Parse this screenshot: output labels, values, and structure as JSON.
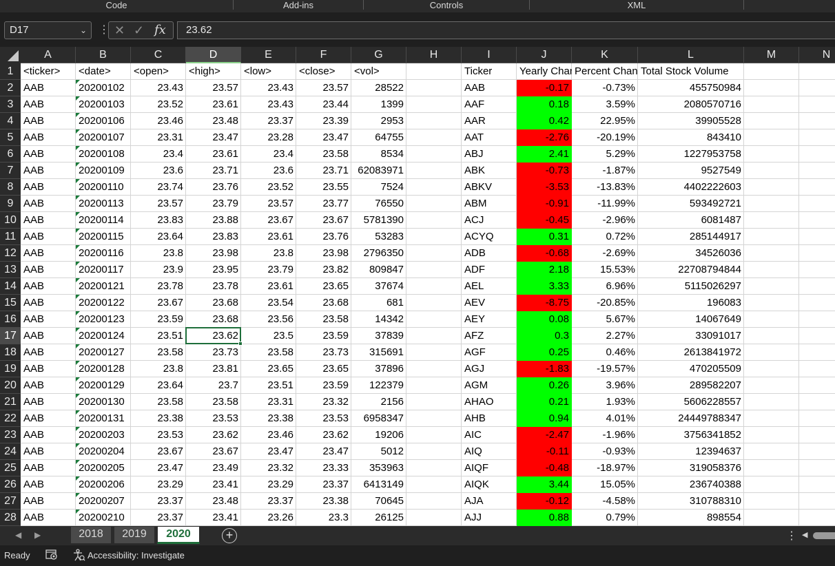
{
  "ribbon": {
    "groups": [
      "Code",
      "Add-ins",
      "Controls",
      "XML"
    ]
  },
  "formula_bar": {
    "name_box": "D17",
    "value": "23.62",
    "fx_label": "fx"
  },
  "columns": [
    "A",
    "B",
    "C",
    "D",
    "E",
    "F",
    "G",
    "H",
    "I",
    "J",
    "K",
    "L",
    "M",
    "N"
  ],
  "selected_column": "D",
  "selected_row": 17,
  "rows": [
    1,
    2,
    3,
    4,
    5,
    6,
    7,
    8,
    9,
    10,
    11,
    12,
    13,
    14,
    15,
    16,
    17,
    18,
    19,
    20,
    21,
    22,
    23,
    24,
    25,
    26,
    27,
    28
  ],
  "headers": {
    "ticker": "<ticker>",
    "date": "<date>",
    "open": "<open>",
    "high": "<high>",
    "low": "<low>",
    "close": "<close>",
    "vol": "<vol>",
    "summary_ticker": "Ticker",
    "yearly_change": "Yearly Change",
    "percent_change": "Percent Change",
    "total_volume": "Total Stock Volume"
  },
  "stock_rows": [
    [
      "AAB",
      "20200102",
      "23.43",
      "23.57",
      "23.43",
      "23.57",
      "28522"
    ],
    [
      "AAB",
      "20200103",
      "23.52",
      "23.61",
      "23.43",
      "23.44",
      "1399"
    ],
    [
      "AAB",
      "20200106",
      "23.46",
      "23.48",
      "23.37",
      "23.39",
      "2953"
    ],
    [
      "AAB",
      "20200107",
      "23.31",
      "23.47",
      "23.28",
      "23.47",
      "64755"
    ],
    [
      "AAB",
      "20200108",
      "23.4",
      "23.61",
      "23.4",
      "23.58",
      "8534"
    ],
    [
      "AAB",
      "20200109",
      "23.6",
      "23.71",
      "23.6",
      "23.71",
      "62083971"
    ],
    [
      "AAB",
      "20200110",
      "23.74",
      "23.76",
      "23.52",
      "23.55",
      "7524"
    ],
    [
      "AAB",
      "20200113",
      "23.57",
      "23.79",
      "23.57",
      "23.77",
      "76550"
    ],
    [
      "AAB",
      "20200114",
      "23.83",
      "23.88",
      "23.67",
      "23.67",
      "5781390"
    ],
    [
      "AAB",
      "20200115",
      "23.64",
      "23.83",
      "23.61",
      "23.76",
      "53283"
    ],
    [
      "AAB",
      "20200116",
      "23.8",
      "23.98",
      "23.8",
      "23.98",
      "2796350"
    ],
    [
      "AAB",
      "20200117",
      "23.9",
      "23.95",
      "23.79",
      "23.82",
      "809847"
    ],
    [
      "AAB",
      "20200121",
      "23.78",
      "23.78",
      "23.61",
      "23.65",
      "37674"
    ],
    [
      "AAB",
      "20200122",
      "23.67",
      "23.68",
      "23.54",
      "23.68",
      "681"
    ],
    [
      "AAB",
      "20200123",
      "23.59",
      "23.68",
      "23.56",
      "23.58",
      "14342"
    ],
    [
      "AAB",
      "20200124",
      "23.51",
      "23.62",
      "23.5",
      "23.59",
      "37839"
    ],
    [
      "AAB",
      "20200127",
      "23.58",
      "23.73",
      "23.58",
      "23.73",
      "315691"
    ],
    [
      "AAB",
      "20200128",
      "23.8",
      "23.81",
      "23.65",
      "23.65",
      "37896"
    ],
    [
      "AAB",
      "20200129",
      "23.64",
      "23.7",
      "23.51",
      "23.59",
      "122379"
    ],
    [
      "AAB",
      "20200130",
      "23.58",
      "23.58",
      "23.31",
      "23.32",
      "2156"
    ],
    [
      "AAB",
      "20200131",
      "23.38",
      "23.53",
      "23.38",
      "23.53",
      "6958347"
    ],
    [
      "AAB",
      "20200203",
      "23.53",
      "23.62",
      "23.46",
      "23.62",
      "19206"
    ],
    [
      "AAB",
      "20200204",
      "23.67",
      "23.67",
      "23.47",
      "23.47",
      "5012"
    ],
    [
      "AAB",
      "20200205",
      "23.47",
      "23.49",
      "23.32",
      "23.33",
      "353963"
    ],
    [
      "AAB",
      "20200206",
      "23.29",
      "23.41",
      "23.29",
      "23.37",
      "6413149"
    ],
    [
      "AAB",
      "20200207",
      "23.37",
      "23.48",
      "23.37",
      "23.38",
      "70645"
    ],
    [
      "AAB",
      "20200210",
      "23.37",
      "23.41",
      "23.26",
      "23.3",
      "26125"
    ]
  ],
  "summary_rows": [
    [
      "AAB",
      "-0.17",
      "-0.73%",
      "455750984"
    ],
    [
      "AAF",
      "0.18",
      "3.59%",
      "2080570716"
    ],
    [
      "AAR",
      "0.42",
      "22.95%",
      "39905528"
    ],
    [
      "AAT",
      "-2.76",
      "-20.19%",
      "843410"
    ],
    [
      "ABJ",
      "2.41",
      "5.29%",
      "1227953758"
    ],
    [
      "ABK",
      "-0.73",
      "-1.87%",
      "9527549"
    ],
    [
      "ABKV",
      "-3.53",
      "-13.83%",
      "4402222603"
    ],
    [
      "ABM",
      "-0.91",
      "-11.99%",
      "593492721"
    ],
    [
      "ACJ",
      "-0.45",
      "-2.96%",
      "6081487"
    ],
    [
      "ACYQ",
      "0.31",
      "0.72%",
      "285144917"
    ],
    [
      "ADB",
      "-0.68",
      "-2.69%",
      "34526036"
    ],
    [
      "ADF",
      "2.18",
      "15.53%",
      "22708794844"
    ],
    [
      "AEL",
      "3.33",
      "6.96%",
      "5115026297"
    ],
    [
      "AEV",
      "-8.75",
      "-20.85%",
      "196083"
    ],
    [
      "AEY",
      "0.08",
      "5.67%",
      "14067649"
    ],
    [
      "AFZ",
      "0.3",
      "2.27%",
      "33091017"
    ],
    [
      "AGF",
      "0.25",
      "0.46%",
      "2613841972"
    ],
    [
      "AGJ",
      "-1.83",
      "-19.57%",
      "470205509"
    ],
    [
      "AGM",
      "0.26",
      "3.96%",
      "289582207"
    ],
    [
      "AHAO",
      "0.21",
      "1.93%",
      "5606228557"
    ],
    [
      "AHB",
      "0.94",
      "4.01%",
      "24449788347"
    ],
    [
      "AIC",
      "-2.47",
      "-1.96%",
      "3756341852"
    ],
    [
      "AIQ",
      "-0.11",
      "-0.93%",
      "12394637"
    ],
    [
      "AIQF",
      "-0.48",
      "-18.97%",
      "319058376"
    ],
    [
      "AIQK",
      "3.44",
      "15.05%",
      "236740388"
    ],
    [
      "AJA",
      "-0.12",
      "-4.58%",
      "310788310"
    ],
    [
      "AJJ",
      "0.88",
      "0.79%",
      "898554"
    ]
  ],
  "colors": {
    "negative": "#ff0000",
    "positive": "#00ff00",
    "accent": "#1e6e3a"
  },
  "sheets": [
    {
      "label": "2018",
      "active": false
    },
    {
      "label": "2019",
      "active": false
    },
    {
      "label": "2020",
      "active": true
    }
  ],
  "status": {
    "ready": "Ready",
    "accessibility": "Accessibility: Investigate"
  }
}
